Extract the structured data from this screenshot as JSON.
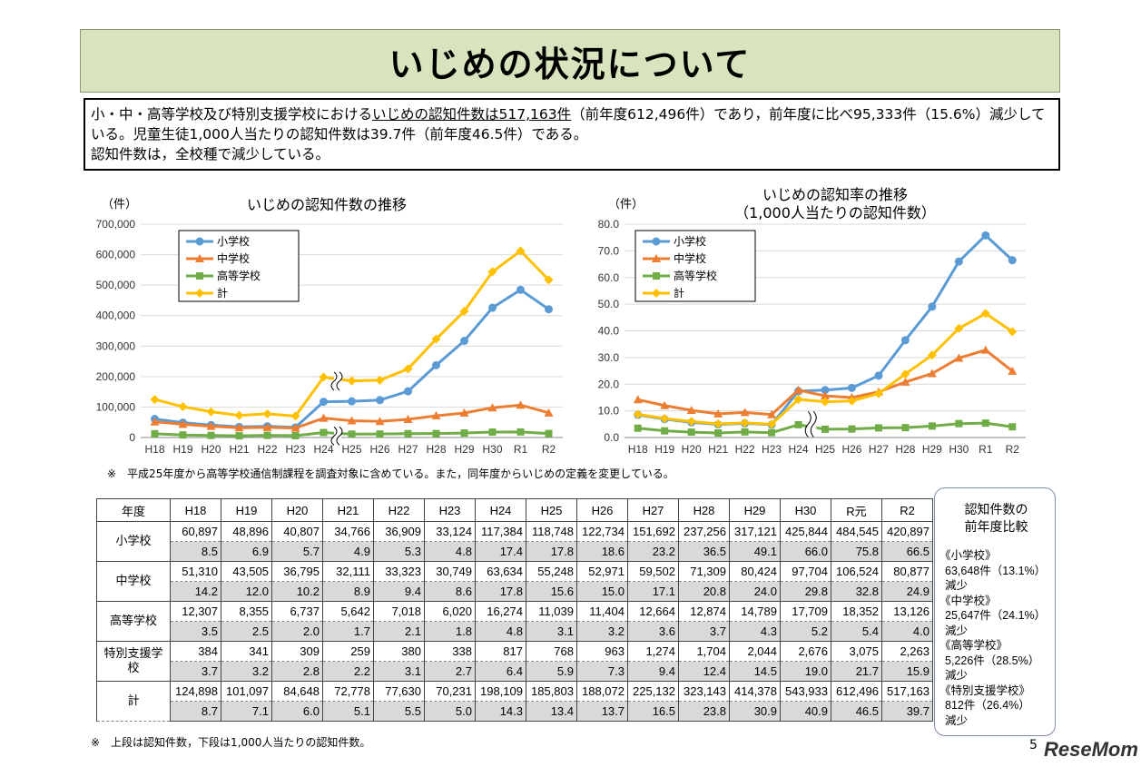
{
  "title": "いじめの状況について",
  "summary": {
    "pre": "小・中・高等学校及び特別支援学校における",
    "underlined": "いじめの認知件数は517,163件",
    "post": "（前年度612,496件）であり，前年度に比べ95,333件（15.6%）減少している。児童生徒1,000人当たりの認知件数は39.7件（前年度46.5件）である。",
    "line2": "認知件数は，全校種で減少している。"
  },
  "colors": {
    "elementary": "#5b9bd5",
    "junior": "#ed7d31",
    "high": "#70ad47",
    "total": "#ffc000",
    "title_bg": "#d7e4bd"
  },
  "chart_data": [
    {
      "type": "line",
      "title": "いじめの認知件数の推移",
      "ylabel": "（件）",
      "ylim": [
        0,
        700000
      ],
      "yticks": [
        "0",
        "100,000",
        "200,000",
        "300,000",
        "400,000",
        "500,000",
        "600,000",
        "700,000"
      ],
      "yticks_values": [
        0,
        100000,
        200000,
        300000,
        400000,
        500000,
        600000,
        700000
      ],
      "categories": [
        "H18",
        "H19",
        "H20",
        "H21",
        "H22",
        "H23",
        "H24",
        "H25",
        "H26",
        "H27",
        "H28",
        "H29",
        "H30",
        "R1",
        "R2"
      ],
      "legend": "top-left",
      "grid": true,
      "axis_break_after": "H24",
      "series": [
        {
          "name": "小学校",
          "marker": "circle",
          "values": [
            60897,
            48896,
            40807,
            34766,
            36909,
            33124,
            117384,
            118748,
            122734,
            151692,
            237256,
            317121,
            425844,
            484545,
            420897
          ]
        },
        {
          "name": "中学校",
          "marker": "triangle",
          "values": [
            51310,
            43505,
            36795,
            32111,
            33323,
            30749,
            63634,
            55248,
            52971,
            59502,
            71309,
            80424,
            97704,
            106524,
            80877
          ]
        },
        {
          "name": "高等学校",
          "marker": "square",
          "values": [
            12307,
            8355,
            6737,
            5642,
            7018,
            6020,
            16274,
            11039,
            11404,
            12664,
            12874,
            14789,
            17709,
            18352,
            13126
          ]
        },
        {
          "name": "計",
          "marker": "diamond",
          "values": [
            124898,
            101097,
            84648,
            72778,
            77630,
            70231,
            198109,
            185803,
            188072,
            225132,
            323143,
            414378,
            543933,
            612496,
            517163
          ]
        }
      ]
    },
    {
      "type": "line",
      "title": "いじめの認知率の推移",
      "subtitle": "（1,000人当たりの認知件数）",
      "ylabel": "（件）",
      "ylim": [
        0,
        80
      ],
      "yticks": [
        "0.0",
        "10.0",
        "20.0",
        "30.0",
        "40.0",
        "50.0",
        "60.0",
        "70.0",
        "80.0"
      ],
      "yticks_values": [
        0,
        10,
        20,
        30,
        40,
        50,
        60,
        70,
        80
      ],
      "categories": [
        "H18",
        "H19",
        "H20",
        "H21",
        "H22",
        "H23",
        "H24",
        "H25",
        "H26",
        "H27",
        "H28",
        "H29",
        "H30",
        "R1",
        "R2"
      ],
      "legend": "top-left",
      "grid": true,
      "axis_break_after": "H24",
      "series": [
        {
          "name": "小学校",
          "marker": "circle",
          "values": [
            8.5,
            6.9,
            5.7,
            4.9,
            5.3,
            4.8,
            17.4,
            17.8,
            18.6,
            23.2,
            36.5,
            49.1,
            66.0,
            75.8,
            66.5
          ]
        },
        {
          "name": "中学校",
          "marker": "triangle",
          "values": [
            14.2,
            12.0,
            10.2,
            8.9,
            9.4,
            8.6,
            17.8,
            15.6,
            15.0,
            17.1,
            20.8,
            24.0,
            29.8,
            32.8,
            24.9
          ]
        },
        {
          "name": "高等学校",
          "marker": "square",
          "values": [
            3.5,
            2.5,
            2.0,
            1.7,
            2.1,
            1.8,
            4.8,
            3.1,
            3.2,
            3.6,
            3.7,
            4.3,
            5.2,
            5.4,
            4.0
          ]
        },
        {
          "name": "計",
          "marker": "diamond",
          "values": [
            8.7,
            7.1,
            6.0,
            5.1,
            5.5,
            5.0,
            14.3,
            13.4,
            13.7,
            16.5,
            23.8,
            30.9,
            40.9,
            46.5,
            39.7
          ]
        }
      ]
    }
  ],
  "note1": "※　平成25年度から高等学校通信制課程を調査対象に含めている。また，同年度からいじめの定義を変更している。",
  "table": {
    "header_label": "年度",
    "years": [
      "H18",
      "H19",
      "H20",
      "H21",
      "H22",
      "H23",
      "H24",
      "H25",
      "H26",
      "H27",
      "H28",
      "H29",
      "H30",
      "R元",
      "R2"
    ],
    "rows": [
      {
        "label": "小学校",
        "counts": [
          "60,897",
          "48,896",
          "40,807",
          "34,766",
          "36,909",
          "33,124",
          "117,384",
          "118,748",
          "122,734",
          "151,692",
          "237,256",
          "317,121",
          "425,844",
          "484,545",
          "420,897"
        ],
        "rates": [
          "8.5",
          "6.9",
          "5.7",
          "4.9",
          "5.3",
          "4.8",
          "17.4",
          "17.8",
          "18.6",
          "23.2",
          "36.5",
          "49.1",
          "66.0",
          "75.8",
          "66.5"
        ]
      },
      {
        "label": "中学校",
        "counts": [
          "51,310",
          "43,505",
          "36,795",
          "32,111",
          "33,323",
          "30,749",
          "63,634",
          "55,248",
          "52,971",
          "59,502",
          "71,309",
          "80,424",
          "97,704",
          "106,524",
          "80,877"
        ],
        "rates": [
          "14.2",
          "12.0",
          "10.2",
          "8.9",
          "9.4",
          "8.6",
          "17.8",
          "15.6",
          "15.0",
          "17.1",
          "20.8",
          "24.0",
          "29.8",
          "32.8",
          "24.9"
        ]
      },
      {
        "label": "高等学校",
        "counts": [
          "12,307",
          "8,355",
          "6,737",
          "5,642",
          "7,018",
          "6,020",
          "16,274",
          "11,039",
          "11,404",
          "12,664",
          "12,874",
          "14,789",
          "17,709",
          "18,352",
          "13,126"
        ],
        "rates": [
          "3.5",
          "2.5",
          "2.0",
          "1.7",
          "2.1",
          "1.8",
          "4.8",
          "3.1",
          "3.2",
          "3.6",
          "3.7",
          "4.3",
          "5.2",
          "5.4",
          "4.0"
        ]
      },
      {
        "label": "特別支援学校",
        "counts": [
          "384",
          "341",
          "309",
          "259",
          "380",
          "338",
          "817",
          "768",
          "963",
          "1,274",
          "1,704",
          "2,044",
          "2,676",
          "3,075",
          "2,263"
        ],
        "rates": [
          "3.7",
          "3.2",
          "2.8",
          "2.2",
          "3.1",
          "2.7",
          "6.4",
          "5.9",
          "7.3",
          "9.4",
          "12.4",
          "14.5",
          "19.0",
          "21.7",
          "15.9"
        ]
      },
      {
        "label": "計",
        "counts": [
          "124,898",
          "101,097",
          "84,648",
          "72,778",
          "77,630",
          "70,231",
          "198,109",
          "185,803",
          "188,072",
          "225,132",
          "323,143",
          "414,378",
          "543,933",
          "612,496",
          "517,163"
        ],
        "rates": [
          "8.7",
          "7.1",
          "6.0",
          "5.1",
          "5.5",
          "5.0",
          "14.3",
          "13.4",
          "13.7",
          "16.5",
          "23.8",
          "30.9",
          "40.9",
          "46.5",
          "39.7"
        ]
      }
    ]
  },
  "note2": "※　上段は認知件数，下段は1,000人当たりの認知件数。",
  "side_box": {
    "title_line1": "認知件数の",
    "title_line2": "前年度比較",
    "items": [
      {
        "label": "《小学校》",
        "value": "63,648件（13.1%）",
        "change": "減少"
      },
      {
        "label": "《中学校》",
        "value": "25,647件（24.1%）",
        "change": "減少"
      },
      {
        "label": "《高等学校》",
        "value": "5,226件（28.5%）",
        "change": "減少"
      },
      {
        "label": "《特別支援学校》",
        "value": "812件（26.4%）",
        "change": "減少"
      }
    ]
  },
  "page_number": "5",
  "logo": "ReseMom"
}
